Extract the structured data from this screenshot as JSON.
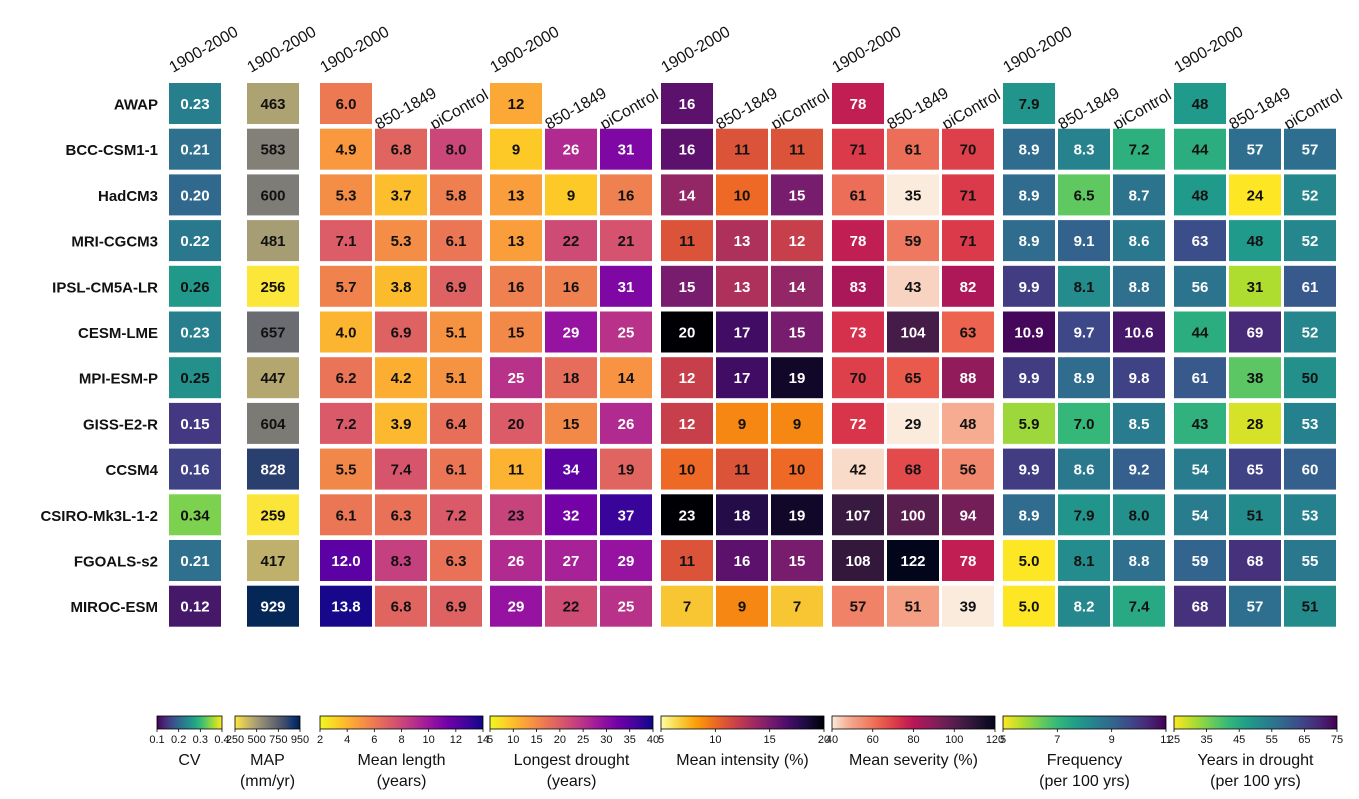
{
  "chart_data": {
    "type": "heatmap",
    "rows": [
      "AWAP",
      "BCC-CSM1-1",
      "HadCM3",
      "MRI-CGCM3",
      "IPSL-CM5A-LR",
      "CESM-LME",
      "MPI-ESM-P",
      "GISS-E2-R",
      "CCSM4",
      "CSIRO-Mk3L-1-2",
      "FGOALS-s2",
      "MIROC-ESM"
    ],
    "panels": [
      {
        "id": "cv",
        "label": "CV",
        "label2": "",
        "decimals": 2,
        "cmap": "viridis",
        "reverse": false,
        "range": [
          0.1,
          0.4
        ],
        "ticks": [
          "0.1",
          "0.2",
          "0.3",
          "0.4"
        ],
        "columns": [
          "1900-2000"
        ],
        "values": [
          [
            0.23
          ],
          [
            0.21
          ],
          [
            0.2
          ],
          [
            0.22
          ],
          [
            0.26
          ],
          [
            0.23
          ],
          [
            0.25
          ],
          [
            0.15
          ],
          [
            0.16
          ],
          [
            0.34
          ],
          [
            0.21
          ],
          [
            0.12
          ]
        ]
      },
      {
        "id": "map",
        "label": "MAP",
        "label2": "(mm/yr)",
        "decimals": 0,
        "cmap": "cividis",
        "reverse": true,
        "range": [
          250,
          950
        ],
        "ticks": [
          "250",
          "500",
          "750",
          "950"
        ],
        "columns": [
          "1900-2000"
        ],
        "values": [
          [
            463
          ],
          [
            583
          ],
          [
            600
          ],
          [
            481
          ],
          [
            256
          ],
          [
            657
          ],
          [
            447
          ],
          [
            604
          ],
          [
            828
          ],
          [
            259
          ],
          [
            417
          ],
          [
            929
          ]
        ]
      },
      {
        "id": "mean-length",
        "label": "Mean length",
        "label2": "(years)",
        "decimals": 1,
        "cmap": "plasma",
        "reverse": true,
        "range": [
          2,
          14
        ],
        "ticks": [
          "2",
          "4",
          "6",
          "8",
          "10",
          "12",
          "14"
        ],
        "columns": [
          "1900-2000",
          "850-1849",
          "piControl"
        ],
        "values": [
          [
            6.0,
            null,
            null
          ],
          [
            4.9,
            6.8,
            8.0
          ],
          [
            5.3,
            3.7,
            5.8
          ],
          [
            7.1,
            5.3,
            6.1
          ],
          [
            5.7,
            3.8,
            6.9
          ],
          [
            4.0,
            6.9,
            5.1
          ],
          [
            6.2,
            4.2,
            5.1
          ],
          [
            7.2,
            3.9,
            6.4
          ],
          [
            5.5,
            7.4,
            6.1
          ],
          [
            6.1,
            6.3,
            7.2
          ],
          [
            12.0,
            8.3,
            6.3
          ],
          [
            13.8,
            6.8,
            6.9
          ]
        ]
      },
      {
        "id": "longest-drought",
        "label": "Longest drought",
        "label2": "(years)",
        "decimals": 0,
        "cmap": "plasma",
        "reverse": true,
        "range": [
          5,
          40
        ],
        "ticks": [
          "5",
          "10",
          "15",
          "20",
          "25",
          "30",
          "35",
          "40"
        ],
        "columns": [
          "1900-2000",
          "850-1849",
          "piControl"
        ],
        "values": [
          [
            12,
            null,
            null
          ],
          [
            9,
            26,
            31
          ],
          [
            13,
            9,
            16
          ],
          [
            13,
            22,
            21
          ],
          [
            16,
            16,
            31
          ],
          [
            15,
            29,
            25
          ],
          [
            25,
            18,
            14
          ],
          [
            20,
            15,
            26
          ],
          [
            11,
            34,
            19
          ],
          [
            23,
            32,
            37
          ],
          [
            26,
            27,
            29
          ],
          [
            29,
            22,
            25
          ]
        ]
      },
      {
        "id": "mean-intensity",
        "label": "Mean intensity (%)",
        "label2": "",
        "decimals": 0,
        "cmap": "inferno",
        "reverse": true,
        "range": [
          5,
          20
        ],
        "ticks": [
          "5",
          "10",
          "15",
          "20"
        ],
        "columns": [
          "1900-2000",
          "850-1849",
          "piControl"
        ],
        "values": [
          [
            16,
            null,
            null
          ],
          [
            16,
            11,
            11
          ],
          [
            14,
            10,
            15
          ],
          [
            11,
            13,
            12
          ],
          [
            15,
            13,
            14
          ],
          [
            20,
            17,
            15
          ],
          [
            12,
            17,
            19
          ],
          [
            12,
            9,
            9
          ],
          [
            10,
            11,
            10
          ],
          [
            23,
            18,
            19
          ],
          [
            11,
            16,
            15
          ],
          [
            7,
            9,
            7
          ]
        ]
      },
      {
        "id": "mean-severity",
        "label": "Mean severity (%)",
        "label2": "",
        "decimals": 0,
        "cmap": "rocket",
        "reverse": true,
        "range": [
          40,
          120
        ],
        "ticks": [
          "40",
          "60",
          "80",
          "100",
          "120"
        ],
        "columns": [
          "1900-2000",
          "850-1849",
          "piControl"
        ],
        "values": [
          [
            78,
            null,
            null
          ],
          [
            71,
            61,
            70
          ],
          [
            61,
            35,
            71
          ],
          [
            78,
            59,
            71
          ],
          [
            83,
            43,
            82
          ],
          [
            73,
            104,
            63
          ],
          [
            70,
            65,
            88
          ],
          [
            72,
            29,
            48
          ],
          [
            42,
            68,
            56
          ],
          [
            107,
            100,
            94
          ],
          [
            108,
            122,
            78
          ],
          [
            57,
            51,
            39
          ]
        ]
      },
      {
        "id": "frequency",
        "label": "Frequency",
        "label2": "(per 100 yrs)",
        "decimals": 1,
        "cmap": "viridis",
        "reverse": true,
        "range": [
          5,
          11
        ],
        "ticks": [
          "5",
          "7",
          "9",
          "11"
        ],
        "columns": [
          "1900-2000",
          "850-1849",
          "piControl"
        ],
        "values": [
          [
            7.9,
            null,
            null
          ],
          [
            8.9,
            8.3,
            7.2
          ],
          [
            8.9,
            6.5,
            8.7
          ],
          [
            8.9,
            9.1,
            8.6
          ],
          [
            9.9,
            8.1,
            8.8
          ],
          [
            10.9,
            9.7,
            10.6
          ],
          [
            9.9,
            8.9,
            9.8
          ],
          [
            5.9,
            7.0,
            8.5
          ],
          [
            9.9,
            8.6,
            9.2
          ],
          [
            8.9,
            7.9,
            8.0
          ],
          [
            5.0,
            8.1,
            8.8
          ],
          [
            5.0,
            8.2,
            7.4
          ]
        ]
      },
      {
        "id": "years-in-drought",
        "label": "Years in drought",
        "label2": "(per 100 yrs)",
        "decimals": 0,
        "cmap": "viridis",
        "reverse": true,
        "range": [
          25,
          75
        ],
        "ticks": [
          "25",
          "35",
          "45",
          "55",
          "65",
          "75"
        ],
        "columns": [
          "1900-2000",
          "850-1849",
          "piControl"
        ],
        "values": [
          [
            48,
            null,
            null
          ],
          [
            44,
            57,
            57
          ],
          [
            48,
            24,
            52
          ],
          [
            63,
            48,
            52
          ],
          [
            56,
            31,
            61
          ],
          [
            44,
            69,
            52
          ],
          [
            61,
            38,
            50
          ],
          [
            43,
            28,
            53
          ],
          [
            54,
            65,
            60
          ],
          [
            54,
            51,
            53
          ],
          [
            59,
            68,
            55
          ],
          [
            68,
            57,
            51
          ]
        ]
      }
    ]
  }
}
